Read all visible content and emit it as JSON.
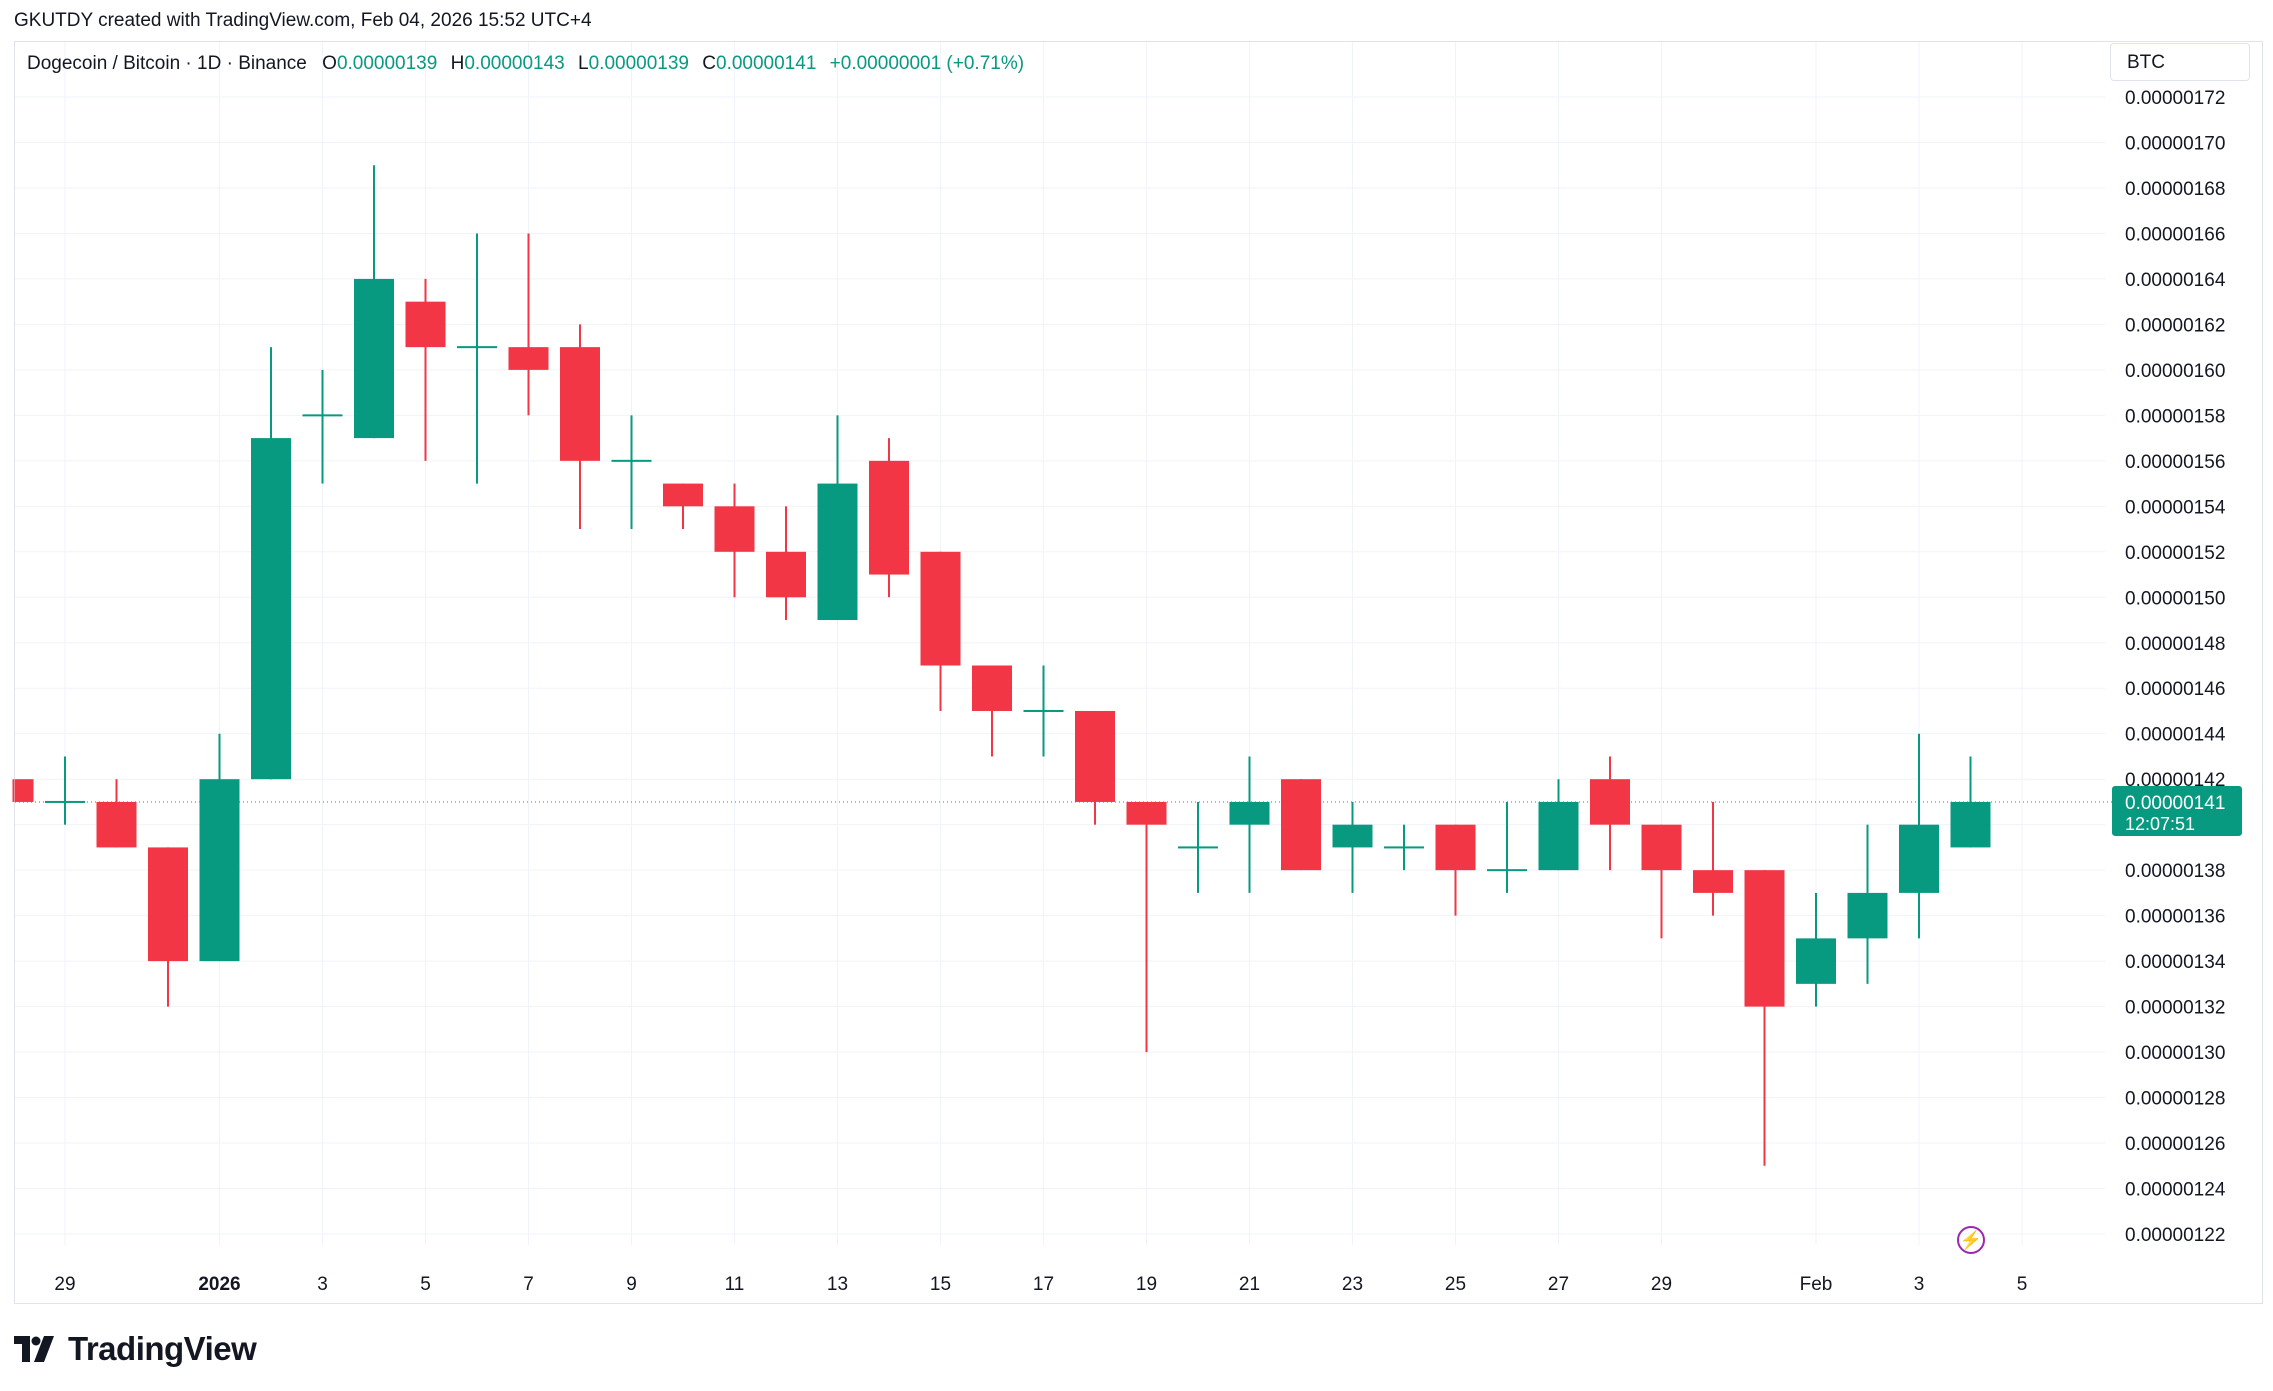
{
  "header": {
    "credit": "GKUTDY created with TradingView.com, Feb 04, 2026 15:52 UTC+4"
  },
  "legend": {
    "symbol": "Dogecoin / Bitcoin · 1D · Binance",
    "o_key": "O",
    "o_val": "0.00000139",
    "h_key": "H",
    "h_val": "0.00000143",
    "l_key": "L",
    "l_val": "0.00000139",
    "c_key": "C",
    "c_val": "0.00000141",
    "change": "+0.00000001 (+0.71%)"
  },
  "currency": "BTC",
  "price_tag": {
    "price": "0.00000141",
    "countdown": "12:07:51"
  },
  "brand": {
    "name": "TradingView"
  },
  "icons": {
    "logo": "tradingview-logo-icon",
    "bolt": "lightning-icon"
  },
  "colors": {
    "up": "#089981",
    "down": "#f23645",
    "grid": "#f0f3fa",
    "text": "#131722",
    "bolt": "#9c27b0"
  },
  "chart_data": {
    "type": "candlestick",
    "y_unit_scale": "1e-8",
    "ylim": [
      1.21e-06,
      1.73e-06
    ],
    "y_ticks": [
      "0.00000122",
      "0.00000124",
      "0.00000126",
      "0.00000128",
      "0.00000130",
      "0.00000132",
      "0.00000134",
      "0.00000136",
      "0.00000138",
      "0.00000140",
      "0.00000142",
      "0.00000144",
      "0.00000146",
      "0.00000148",
      "0.00000150",
      "0.00000152",
      "0.00000154",
      "0.00000156",
      "0.00000158",
      "0.00000160",
      "0.00000162",
      "0.00000164",
      "0.00000166",
      "0.00000168",
      "0.00000170",
      "0.00000172"
    ],
    "x_ticks": [
      {
        "label": "29",
        "day": 0,
        "bold": false
      },
      {
        "label": "2026",
        "day": 3,
        "bold": true
      },
      {
        "label": "3",
        "day": 5,
        "bold": false
      },
      {
        "label": "5",
        "day": 7,
        "bold": false
      },
      {
        "label": "7",
        "day": 9,
        "bold": false
      },
      {
        "label": "9",
        "day": 11,
        "bold": false
      },
      {
        "label": "11",
        "day": 13,
        "bold": false
      },
      {
        "label": "13",
        "day": 15,
        "bold": false
      },
      {
        "label": "15",
        "day": 17,
        "bold": false
      },
      {
        "label": "17",
        "day": 19,
        "bold": false
      },
      {
        "label": "19",
        "day": 21,
        "bold": false
      },
      {
        "label": "21",
        "day": 23,
        "bold": false
      },
      {
        "label": "23",
        "day": 25,
        "bold": false
      },
      {
        "label": "25",
        "day": 27,
        "bold": false
      },
      {
        "label": "27",
        "day": 29,
        "bold": false
      },
      {
        "label": "29",
        "day": 31,
        "bold": false
      },
      {
        "label": "Feb",
        "day": 34,
        "bold": false
      },
      {
        "label": "3",
        "day": 36,
        "bold": false
      },
      {
        "label": "5",
        "day": 38,
        "bold": false
      }
    ],
    "candles": [
      {
        "d": -1,
        "o": 142,
        "h": 142,
        "l": 141,
        "c": 141
      },
      {
        "d": 0,
        "o": 141,
        "h": 143,
        "l": 140,
        "c": 141
      },
      {
        "d": 1,
        "o": 141,
        "h": 142,
        "l": 139,
        "c": 139
      },
      {
        "d": 2,
        "o": 139,
        "h": 139,
        "l": 132,
        "c": 134
      },
      {
        "d": 3,
        "o": 134,
        "h": 144,
        "l": 134,
        "c": 142
      },
      {
        "d": 4,
        "o": 142,
        "h": 161,
        "l": 142,
        "c": 157
      },
      {
        "d": 5,
        "o": 158,
        "h": 160,
        "l": 155,
        "c": 158
      },
      {
        "d": 6,
        "o": 157,
        "h": 169,
        "l": 157,
        "c": 164
      },
      {
        "d": 7,
        "o": 163,
        "h": 164,
        "l": 156,
        "c": 161
      },
      {
        "d": 8,
        "o": 161,
        "h": 166,
        "l": 155,
        "c": 161
      },
      {
        "d": 9,
        "o": 161,
        "h": 166,
        "l": 158,
        "c": 160
      },
      {
        "d": 10,
        "o": 161,
        "h": 162,
        "l": 153,
        "c": 156
      },
      {
        "d": 11,
        "o": 156,
        "h": 158,
        "l": 153,
        "c": 156
      },
      {
        "d": 12,
        "o": 155,
        "h": 155,
        "l": 153,
        "c": 154
      },
      {
        "d": 13,
        "o": 154,
        "h": 155,
        "l": 150,
        "c": 152
      },
      {
        "d": 14,
        "o": 152,
        "h": 154,
        "l": 149,
        "c": 150
      },
      {
        "d": 15,
        "o": 149,
        "h": 158,
        "l": 149,
        "c": 155
      },
      {
        "d": 16,
        "o": 156,
        "h": 157,
        "l": 150,
        "c": 151
      },
      {
        "d": 17,
        "o": 152,
        "h": 152,
        "l": 145,
        "c": 147
      },
      {
        "d": 18,
        "o": 147,
        "h": 147,
        "l": 143,
        "c": 145
      },
      {
        "d": 19,
        "o": 145,
        "h": 147,
        "l": 143,
        "c": 145
      },
      {
        "d": 20,
        "o": 145,
        "h": 145,
        "l": 140,
        "c": 141
      },
      {
        "d": 21,
        "o": 141,
        "h": 141,
        "l": 130,
        "c": 140
      },
      {
        "d": 22,
        "o": 139,
        "h": 141,
        "l": 137,
        "c": 139
      },
      {
        "d": 23,
        "o": 140,
        "h": 143,
        "l": 137,
        "c": 141
      },
      {
        "d": 24,
        "o": 142,
        "h": 142,
        "l": 138,
        "c": 138
      },
      {
        "d": 25,
        "o": 139,
        "h": 141,
        "l": 137,
        "c": 140
      },
      {
        "d": 26,
        "o": 139,
        "h": 140,
        "l": 138,
        "c": 139
      },
      {
        "d": 27,
        "o": 140,
        "h": 140,
        "l": 136,
        "c": 138
      },
      {
        "d": 28,
        "o": 138,
        "h": 141,
        "l": 137,
        "c": 138
      },
      {
        "d": 29,
        "o": 138,
        "h": 142,
        "l": 138,
        "c": 141
      },
      {
        "d": 30,
        "o": 142,
        "h": 143,
        "l": 138,
        "c": 140
      },
      {
        "d": 31,
        "o": 140,
        "h": 140,
        "l": 135,
        "c": 138
      },
      {
        "d": 32,
        "o": 138,
        "h": 141,
        "l": 136,
        "c": 137
      },
      {
        "d": 33,
        "o": 138,
        "h": 138,
        "l": 125,
        "c": 132
      },
      {
        "d": 34,
        "o": 133,
        "h": 137,
        "l": 132,
        "c": 135
      },
      {
        "d": 35,
        "o": 135,
        "h": 140,
        "l": 133,
        "c": 137
      },
      {
        "d": 36,
        "o": 137,
        "h": 144,
        "l": 135,
        "c": 140
      },
      {
        "d": 37,
        "o": 139,
        "h": 143,
        "l": 139,
        "c": 141
      }
    ]
  }
}
